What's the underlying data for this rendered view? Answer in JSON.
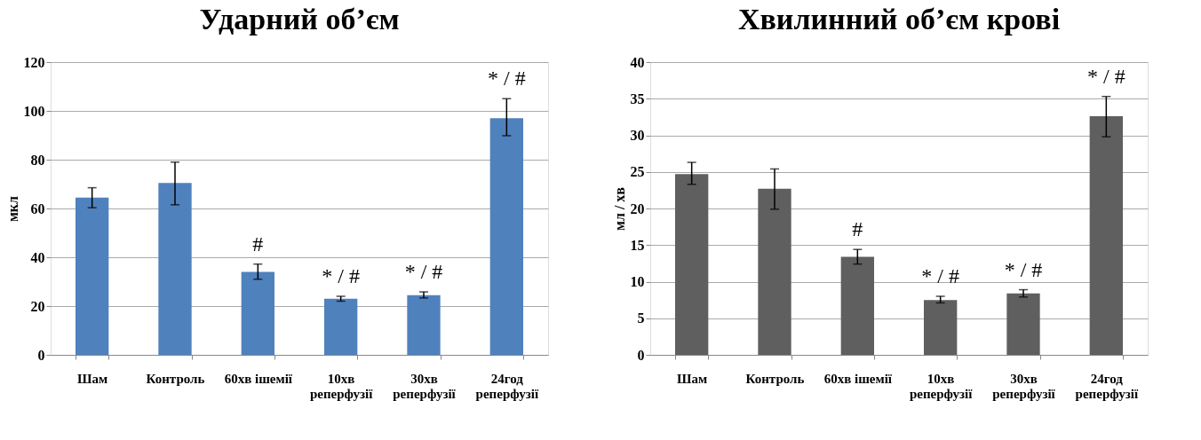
{
  "chart_data": [
    {
      "type": "bar",
      "title": "Ударний об’єм",
      "ylabel": "мкл",
      "categories": [
        "Шам",
        "Контроль",
        "60хв ішемії",
        "10хв\nреперфузії",
        "30хв\nреперфузії",
        "24год\nреперфузії"
      ],
      "values": [
        64.5,
        70.5,
        34,
        23,
        24.5,
        97
      ],
      "color": "#4f81bd",
      "errors": [
        [
          60.3,
          68.5
        ],
        [
          61.5,
          79
        ],
        [
          31,
          37.2
        ],
        [
          22,
          24
        ],
        [
          23.3,
          25.8
        ],
        [
          89.8,
          105
        ]
      ],
      "ylim": [
        0,
        120
      ],
      "yticks": [
        0,
        20,
        40,
        60,
        80,
        100,
        120
      ],
      "grid": "y",
      "value_labels": [
        null,
        null,
        "#",
        "* / #",
        "* / #",
        "* / #"
      ]
    },
    {
      "type": "bar",
      "title": "Хвилинний об’єм крові",
      "ylabel": "мл / хв",
      "categories": [
        "Шам",
        "Контроль",
        "60хв ішемії",
        "10хв\nреперфузії",
        "30хв\nреперфузії",
        "24год\nреперфузії"
      ],
      "values": [
        24.7,
        22.7,
        13.4,
        7.5,
        8.4,
        32.6
      ],
      "color": "#5f5f5f",
      "errors": [
        [
          23.3,
          26.3
        ],
        [
          19.9,
          25.4
        ],
        [
          12.4,
          14.4
        ],
        [
          7.1,
          8.0
        ],
        [
          7.9,
          8.9
        ],
        [
          29.8,
          35.3
        ]
      ],
      "ylim": [
        0,
        40
      ],
      "yticks": [
        0,
        5,
        10,
        15,
        20,
        25,
        30,
        35,
        40
      ],
      "grid": "y",
      "value_labels": [
        null,
        null,
        "#",
        "* / #",
        "* / #",
        "* / #"
      ]
    }
  ]
}
